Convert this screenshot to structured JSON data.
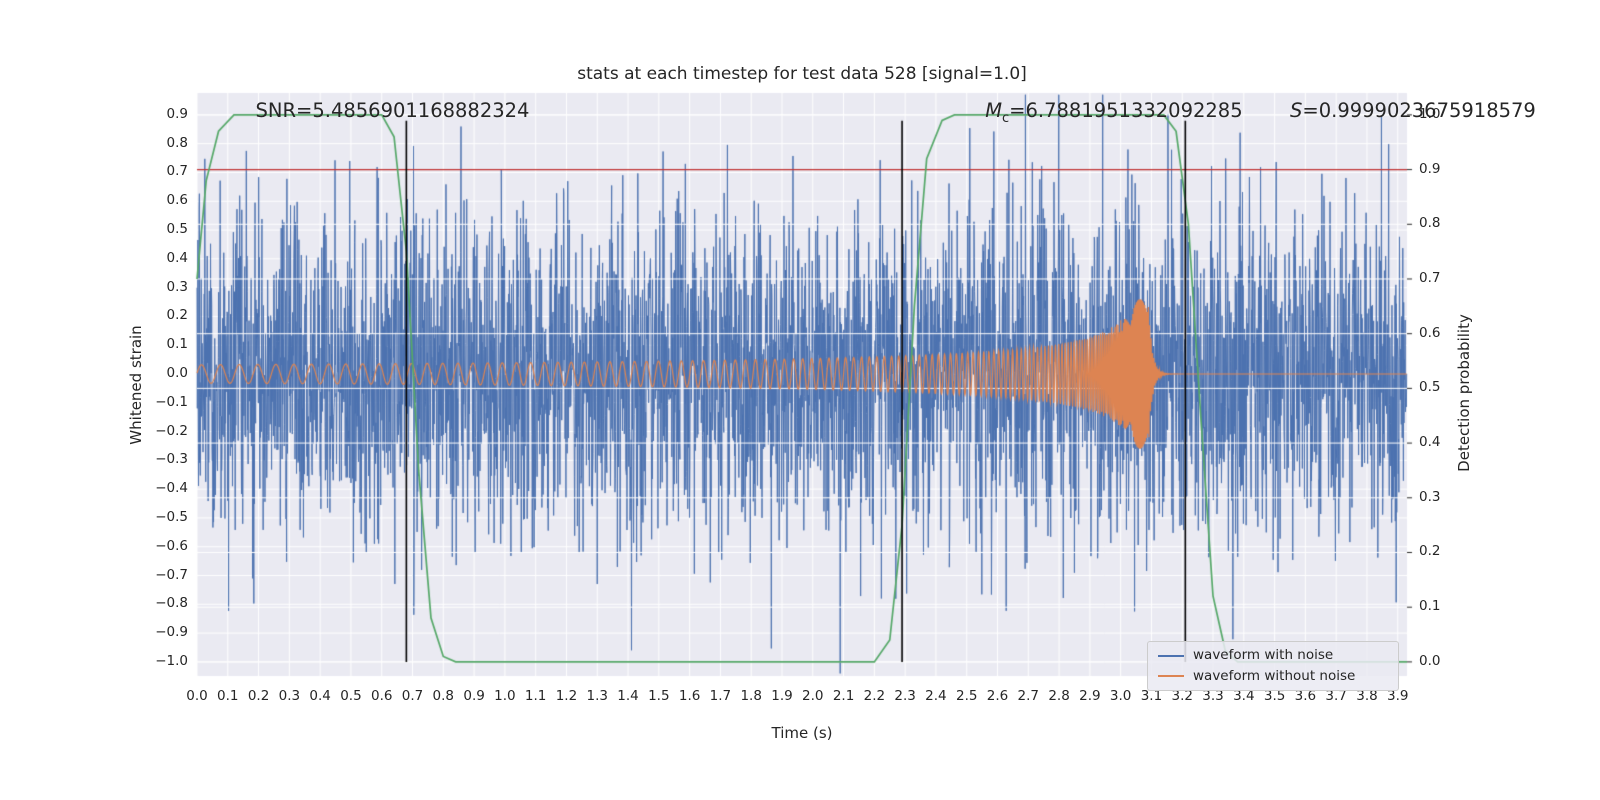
{
  "chart_data": {
    "type": "line",
    "title": "stats at each timestep for test data 528 [signal=1.0]",
    "xlabel": "Time (s)",
    "ylabel": "Whitened strain",
    "ylabel_right": "Detection probability",
    "xlim": [
      0,
      3.93
    ],
    "ylim_left": [
      -1.049,
      0.976
    ],
    "right_axis_mapping": "left_value = -1.0 + 1.9 * right_value",
    "grid": true,
    "plot_bg": "#eaeaf2",
    "grid_color": "#ffffff",
    "x_ticks": [
      0.0,
      0.1,
      0.2,
      0.3,
      0.4,
      0.5,
      0.6,
      0.7,
      0.8,
      0.9,
      1.0,
      1.1,
      1.2,
      1.3,
      1.4,
      1.5,
      1.6,
      1.7,
      1.8,
      1.9,
      2.0,
      2.1,
      2.2,
      2.3,
      2.4,
      2.5,
      2.6,
      2.7,
      2.8,
      2.9,
      3.0,
      3.1,
      3.2,
      3.3,
      3.4,
      3.5,
      3.6,
      3.7,
      3.8,
      3.9
    ],
    "y_ticks_left": [
      0.9,
      0.8,
      0.7,
      0.6,
      0.5,
      0.4,
      0.3,
      0.2,
      0.1,
      0.0,
      -0.1,
      -0.2,
      -0.3,
      -0.4,
      -0.5,
      -0.6,
      -0.7,
      -0.8,
      -0.9,
      -1.0
    ],
    "y_ticks_right": [
      1.0,
      0.9,
      0.8,
      0.7,
      0.6,
      0.5,
      0.4,
      0.3,
      0.2,
      0.1,
      0.0
    ],
    "annotations": {
      "snr": {
        "text": "SNR=5.4856901168882324",
        "x": 0.19
      },
      "chirp_mass": {
        "var": "M",
        "sub": "c",
        "value": "=6.7881951332092285",
        "x": 2.56
      },
      "significance": {
        "var": "S",
        "value": "=0.9999023675918579",
        "x": 3.55
      }
    },
    "threshold_line": {
      "axis": "right",
      "value": 0.9,
      "color": "#c03030"
    },
    "vlines": {
      "x": [
        0.68,
        2.29,
        3.21
      ],
      "y_range_left_axis": [
        -1.0,
        0.88
      ],
      "color": "#000000"
    },
    "series": [
      {
        "name": "waveform with noise",
        "color": "#4c72b0",
        "axis": "left",
        "kind": "noise_plus_signal",
        "noise_std": 0.27,
        "seed": 528,
        "samples_per_sec": 1024
      },
      {
        "name": "waveform without noise",
        "color": "#dd8452",
        "axis": "left",
        "kind": "chirp",
        "t_merger": 3.09,
        "amp_start": 0.032,
        "amp_max": 0.26,
        "amp_pow": 0.5,
        "f_start": 16,
        "f_pow": 0.75,
        "ringdown_tau": 0.012,
        "post_merger_value": 0.0
      },
      {
        "name": "detection probability",
        "color": "#55a868",
        "axis": "right",
        "kind": "piecewise",
        "points": [
          [
            0.0,
            0.7
          ],
          [
            0.03,
            0.88
          ],
          [
            0.07,
            0.97
          ],
          [
            0.12,
            1.0
          ],
          [
            0.6,
            1.0
          ],
          [
            0.64,
            0.96
          ],
          [
            0.68,
            0.75
          ],
          [
            0.72,
            0.35
          ],
          [
            0.76,
            0.08
          ],
          [
            0.8,
            0.01
          ],
          [
            0.84,
            0.0
          ],
          [
            2.2,
            0.0
          ],
          [
            2.25,
            0.04
          ],
          [
            2.29,
            0.25
          ],
          [
            2.33,
            0.65
          ],
          [
            2.37,
            0.92
          ],
          [
            2.42,
            0.99
          ],
          [
            2.46,
            1.0
          ],
          [
            3.14,
            1.0
          ],
          [
            3.18,
            0.97
          ],
          [
            3.22,
            0.8
          ],
          [
            3.26,
            0.45
          ],
          [
            3.3,
            0.12
          ],
          [
            3.34,
            0.02
          ],
          [
            3.38,
            0.0
          ],
          [
            3.93,
            0.0
          ]
        ]
      }
    ],
    "legend": {
      "position": "lower right",
      "items": [
        "waveform with noise",
        "waveform without noise"
      ]
    }
  }
}
